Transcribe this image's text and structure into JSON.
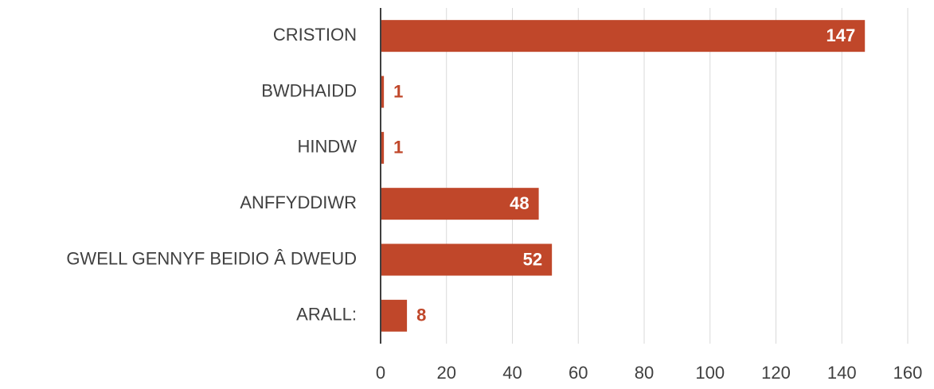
{
  "chart_data": {
    "type": "bar",
    "orientation": "horizontal",
    "categories": [
      "CRISTION",
      "BWDHAIDD",
      "HINDW",
      "ANFFYDDIWR",
      "GWELL GENNYF BEIDIO Â DWEUD",
      "ARALL:"
    ],
    "values": [
      147,
      1,
      1,
      48,
      52,
      8
    ],
    "color": "#c0472a",
    "xlim": [
      0,
      160
    ],
    "xticks": [
      0,
      20,
      40,
      60,
      80,
      100,
      120,
      140,
      160
    ],
    "grid": true
  }
}
